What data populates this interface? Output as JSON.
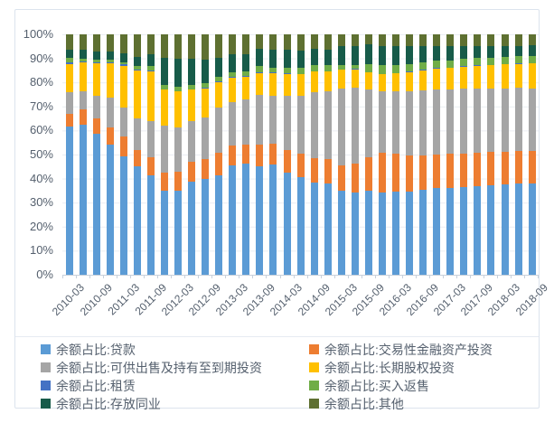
{
  "chart_data": {
    "type": "bar",
    "subtype": "stacked-100-percent-column",
    "title": "",
    "xlabel": "",
    "ylabel": "",
    "ylim": [
      0,
      100
    ],
    "grid": true,
    "legend_position": "bottom",
    "y_ticks": [
      "0%",
      "10%",
      "20%",
      "30%",
      "40%",
      "50%",
      "60%",
      "70%",
      "80%",
      "90%",
      "100%"
    ],
    "categories": [
      "2010-03",
      "2010-06",
      "2010-09",
      "2010-12",
      "2011-03",
      "2011-06",
      "2011-09",
      "2011-12",
      "2012-03",
      "2012-06",
      "2012-09",
      "2012-12",
      "2013-03",
      "2013-06",
      "2013-09",
      "2013-12",
      "2014-03",
      "2014-06",
      "2014-09",
      "2014-12",
      "2015-03",
      "2015-06",
      "2015-09",
      "2015-12",
      "2016-03",
      "2016-06",
      "2016-09",
      "2016-12",
      "2017-03",
      "2017-06",
      "2017-09",
      "2017-12",
      "2018-03",
      "2018-06",
      "2018-09"
    ],
    "x_tick_labels": [
      "2010-03",
      "2010-09",
      "2011-03",
      "2011-09",
      "2012-03",
      "2012-09",
      "2013-03",
      "2013-09",
      "2014-03",
      "2014-09",
      "2015-03",
      "2015-09",
      "2016-03",
      "2016-09",
      "2017-03",
      "2017-09",
      "2018-03",
      "2018-09"
    ],
    "x_label_every_n": 2,
    "series": [
      {
        "name": "余额占比:贷款",
        "color": "#5B9BD5",
        "values": [
          61.5,
          62.3,
          58.8,
          54.3,
          49.4,
          45.0,
          41.2,
          35.0,
          35.0,
          38.7,
          40.0,
          41.2,
          45.6,
          46.2,
          45.2,
          46.0,
          42.5,
          40.6,
          38.5,
          38.1,
          35.0,
          34.3,
          35.0,
          34.3,
          34.5,
          34.7,
          35.3,
          36.0,
          36.2,
          36.5,
          37.0,
          37.4,
          37.7,
          38.0,
          38.1
        ]
      },
      {
        "name": "余额占比:交易性金融资产投资",
        "color": "#ED7D31",
        "values": [
          5.6,
          6.5,
          6.3,
          6.9,
          8.1,
          6.9,
          7.5,
          7.5,
          7.8,
          8.2,
          8.1,
          9.4,
          8.2,
          8.1,
          8.8,
          8.4,
          9.4,
          9.6,
          10.0,
          10.2,
          10.6,
          12.0,
          14.0,
          16.5,
          15.8,
          15.0,
          14.5,
          14.0,
          14.0,
          14.0,
          13.8,
          13.6,
          13.5,
          13.4,
          13.4
        ]
      },
      {
        "name": "余额占比:可供出售及持有至到期投资",
        "color": "#A5A5A5",
        "values": [
          8.8,
          7.5,
          9.4,
          12.5,
          11.9,
          13.2,
          15.1,
          19.4,
          18.4,
          16.9,
          17.5,
          18.8,
          18.1,
          18.8,
          21.0,
          20.0,
          22.5,
          24.4,
          27.6,
          28.0,
          32.0,
          31.5,
          28.0,
          25.5,
          26.0,
          26.8,
          27.0,
          27.2,
          27.0,
          26.8,
          26.6,
          26.5,
          26.4,
          26.3,
          26.1
        ]
      },
      {
        "name": "余额占比:长期股权投资",
        "color": "#FFC000",
        "values": [
          11.8,
          12.3,
          13.6,
          14.4,
          17.5,
          20.0,
          20.7,
          15.0,
          15.0,
          13.1,
          11.9,
          10.7,
          10.1,
          9.4,
          9.0,
          9.4,
          9.2,
          8.8,
          8.4,
          8.2,
          7.7,
          7.6,
          7.1,
          7.1,
          7.5,
          7.8,
          8.2,
          8.6,
          8.8,
          9.2,
          9.5,
          9.7,
          9.9,
          10.0,
          10.2
        ]
      },
      {
        "name": "余额占比:租赁",
        "color": "#4472C4",
        "values": [
          0.7,
          0.4,
          0.3,
          0.3,
          0.6,
          0.4,
          0.3,
          0.2,
          0.2,
          0.2,
          0.3,
          0.2,
          0.2,
          0.2,
          0.3,
          0.3,
          0.3,
          0.2,
          0.2,
          0.2,
          0.2,
          0.2,
          0.2,
          0.2,
          0.2,
          0.2,
          0.2,
          0.2,
          0.2,
          0.2,
          0.2,
          0.2,
          0.2,
          0.2,
          0.3
        ]
      },
      {
        "name": "余额占比:买入返售",
        "color": "#70AD47",
        "values": [
          1.8,
          0.9,
          0.9,
          0.9,
          1.0,
          1.5,
          1.9,
          1.9,
          2.0,
          1.9,
          2.0,
          1.9,
          1.9,
          1.9,
          2.5,
          2.0,
          2.3,
          2.4,
          2.5,
          2.5,
          1.6,
          1.8,
          3.5,
          3.5,
          3.3,
          3.2,
          3.1,
          3.0,
          3.0,
          3.0,
          3.0,
          3.0,
          3.0,
          3.0,
          2.9
        ]
      },
      {
        "name": "余额占比:存放同业",
        "color": "#175B49",
        "values": [
          3.3,
          3.8,
          3.7,
          3.6,
          3.5,
          3.8,
          5.0,
          11.3,
          11.4,
          10.9,
          9.7,
          8.1,
          7.5,
          7.1,
          7.2,
          7.4,
          7.3,
          7.2,
          6.8,
          6.6,
          7.9,
          7.6,
          8.1,
          8.1,
          7.7,
          7.3,
          6.7,
          6.0,
          5.8,
          5.3,
          4.9,
          4.6,
          4.4,
          4.3,
          4.4
        ]
      },
      {
        "name": "余额占比:其他",
        "color": "#5E7031",
        "values": [
          6.5,
          6.4,
          7.0,
          7.1,
          8.0,
          9.2,
          8.3,
          9.7,
          10.2,
          10.1,
          10.5,
          9.7,
          8.4,
          8.3,
          6.0,
          6.5,
          6.5,
          6.8,
          6.0,
          6.2,
          5.0,
          5.0,
          4.1,
          4.8,
          5.0,
          5.0,
          5.0,
          5.0,
          5.0,
          5.0,
          5.0,
          5.0,
          4.9,
          4.8,
          4.6
        ]
      }
    ]
  },
  "style_colors": {
    "frame_border": "#dce3ed",
    "gridline": "#eaeef3",
    "axis_line": "#c9d1db",
    "text": "#55606e"
  }
}
